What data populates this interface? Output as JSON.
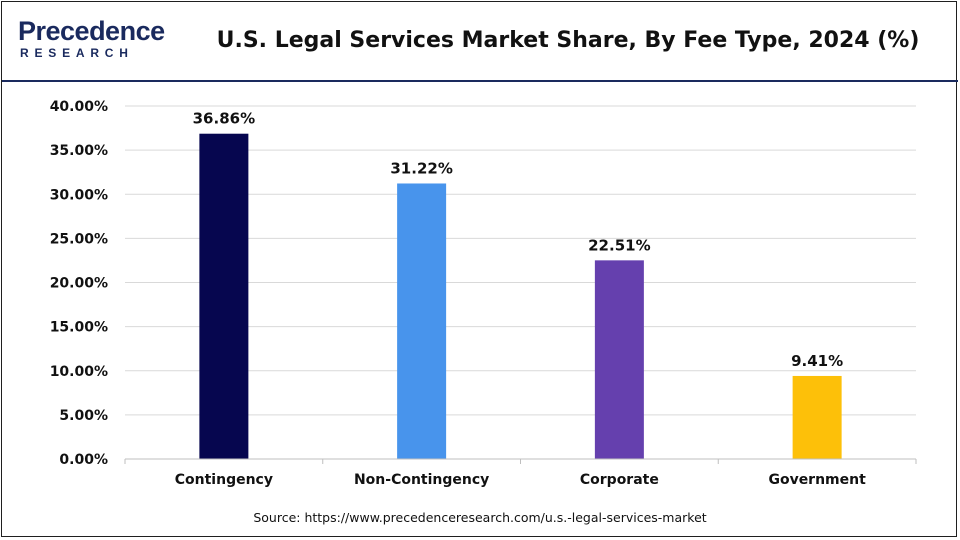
{
  "header": {
    "logo_top": "Precedence",
    "logo_bottom": "RESEARCH",
    "title": "U.S. Legal Services Market Share, By Fee Type, 2024 (%)"
  },
  "footer": {
    "source": "Source: https://www.precedenceresearch.com/u.s.-legal-services-market"
  },
  "colors": {
    "brand": "#1a2a5e",
    "grid": "#d9d9d9"
  },
  "chart_data": {
    "type": "bar",
    "title": "U.S. Legal Services Market Share, By Fee Type, 2024 (%)",
    "categories": [
      "Contingency",
      "Non-Contingency",
      "Corporate",
      "Government"
    ],
    "values": [
      36.86,
      31.22,
      22.51,
      9.41
    ],
    "value_labels": [
      "36.86%",
      "31.22%",
      "22.51%",
      "9.41%"
    ],
    "colors": [
      "#06064f",
      "#4894ec",
      "#6540ae",
      "#fdc009"
    ],
    "ylim": [
      0,
      40
    ],
    "yticks": [
      0,
      5,
      10,
      15,
      20,
      25,
      30,
      35,
      40
    ],
    "ytick_labels": [
      "0.00%",
      "5.00%",
      "10.00%",
      "15.00%",
      "20.00%",
      "25.00%",
      "30.00%",
      "35.00%",
      "40.00%"
    ],
    "grid": true,
    "legend": "none"
  }
}
